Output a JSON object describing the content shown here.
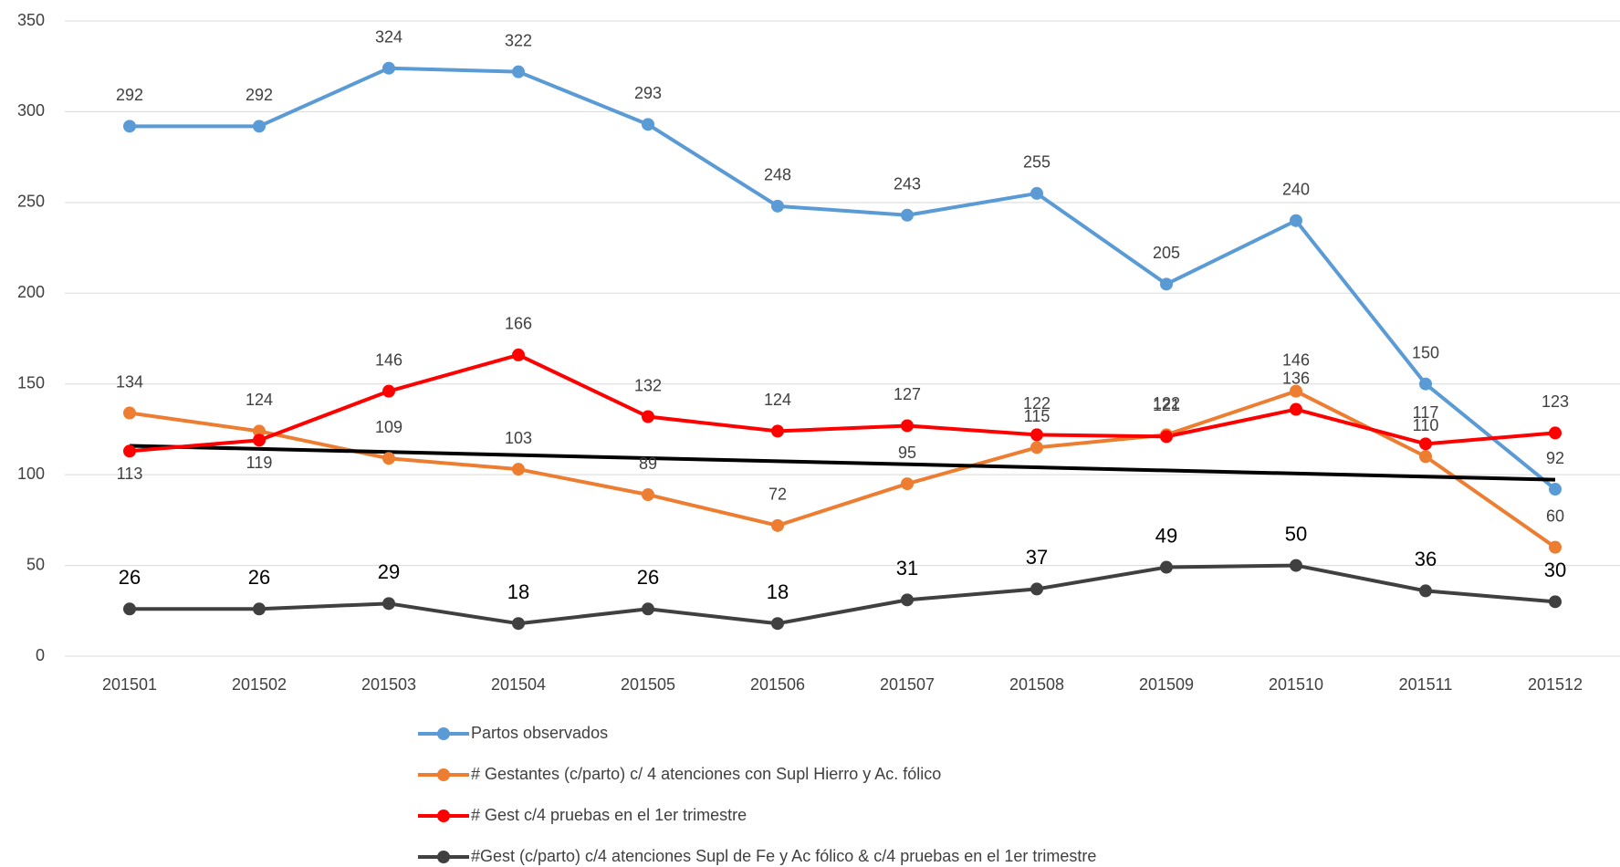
{
  "chart_data": {
    "type": "line",
    "categories": [
      "201501",
      "201502",
      "201503",
      "201504",
      "201505",
      "201506",
      "201507",
      "201508",
      "201509",
      "201510",
      "201511",
      "201512"
    ],
    "series": [
      {
        "name": "Partos observados",
        "color": "#5b9bd5",
        "values": [
          292,
          292,
          324,
          322,
          293,
          248,
          243,
          255,
          205,
          240,
          150,
          92
        ]
      },
      {
        "name": "# Gestantes (c/parto) c/ 4 atenciones con Supl Hierro y Ac. fólico",
        "color": "#ed7d31",
        "values": [
          134,
          124,
          109,
          103,
          89,
          72,
          95,
          115,
          122,
          146,
          110,
          60
        ]
      },
      {
        "name": "# Gest c/4 pruebas en el 1er trimestre",
        "color": "#ff0000",
        "values": [
          113,
          119,
          146,
          166,
          132,
          124,
          127,
          122,
          121,
          136,
          117,
          123
        ]
      },
      {
        "name": "#Gest (c/parto) c/4 atenciones Supl de Fe y Ac fólico & c/4 pruebas en el 1er trimestre",
        "color": "#404040",
        "values": [
          26,
          26,
          29,
          18,
          26,
          18,
          31,
          37,
          49,
          50,
          36,
          30
        ]
      }
    ],
    "trendline": {
      "series": 1,
      "color": "#000000"
    },
    "ylim": [
      0,
      350
    ],
    "yticks": [
      0,
      50,
      100,
      150,
      200,
      250,
      300,
      350
    ],
    "grid": true,
    "legend": "bottom"
  }
}
